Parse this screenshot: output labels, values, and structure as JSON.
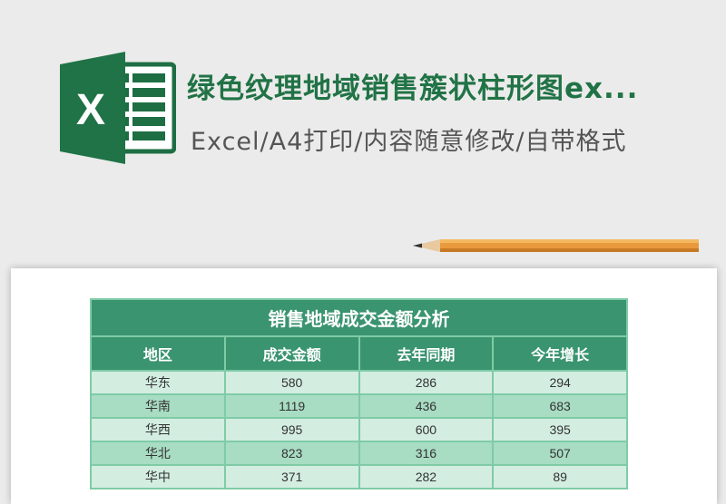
{
  "header": {
    "title": "绿色纹理地域销售簇状柱形图ex...",
    "subtitle": "Excel/A4打印/内容随意修改/自带格式",
    "logo_letter": "X"
  },
  "colors": {
    "brand": "#217346",
    "table_header": "#3a9470",
    "row_light": "#d3ede1",
    "row_dark": "#a8dcc3"
  },
  "table": {
    "title": "销售地域成交金额分析",
    "columns": [
      "地区",
      "成交金额",
      "去年同期",
      "今年增长"
    ],
    "rows": [
      [
        "华东",
        "580",
        "286",
        "294"
      ],
      [
        "华南",
        "1119",
        "436",
        "683"
      ],
      [
        "华西",
        "995",
        "600",
        "395"
      ],
      [
        "华北",
        "823",
        "316",
        "507"
      ],
      [
        "华中",
        "371",
        "282",
        "89"
      ]
    ]
  }
}
